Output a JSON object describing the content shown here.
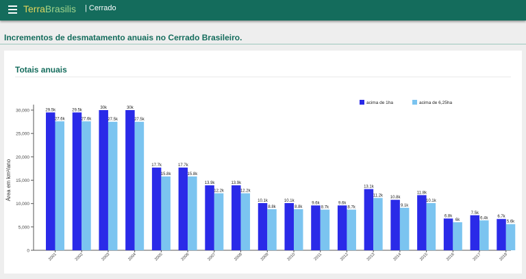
{
  "app": {
    "brand_part1": "Terra",
    "brand_part2": "Brasilis",
    "section": "| Cerrado",
    "menu_icon": "hamburger-menu-icon",
    "header_color": "#146c5c"
  },
  "page": {
    "title": "Incrementos de desmatamento anuais no Cerrado Brasileiro."
  },
  "card": {
    "title": "Totais anuais"
  },
  "chart_data": {
    "type": "bar",
    "ylabel": "Área em km²/ano",
    "xlabel": "",
    "ylim": [
      0,
      30000
    ],
    "yticks": [
      0,
      5000,
      10000,
      15000,
      20000,
      25000,
      30000
    ],
    "ytick_labels": [
      "0",
      "5,000",
      "10,000",
      "15,000",
      "20,000",
      "25,000",
      "30,000"
    ],
    "grid": false,
    "legend_position": "top-right",
    "categories": [
      "2001",
      "2002",
      "2003",
      "2004",
      "2005",
      "2006",
      "2007",
      "2008",
      "2009",
      "2010",
      "2011",
      "2012",
      "2013",
      "2014",
      "2015",
      "2016",
      "2017",
      "2018"
    ],
    "series": [
      {
        "name": "acima de 1ha",
        "color": "#2a2ae8",
        "values": [
          29500,
          29500,
          30000,
          30000,
          17700,
          17700,
          13900,
          13900,
          10100,
          10100,
          9600,
          9600,
          13100,
          10800,
          11800,
          6800,
          7500,
          6700
        ],
        "labels": [
          "29.5k",
          "29.5k",
          "30k",
          "30k",
          "17.7k",
          "17.7k",
          "13.9k",
          "13.9k",
          "10.1k",
          "10.1k",
          "9.6k",
          "9.6k",
          "13.1k",
          "10.8k",
          "11.8k",
          "6.8k",
          "7.5k",
          "6.7k"
        ]
      },
      {
        "name": "acima de 6,25ha",
        "color": "#7bc4f0",
        "values": [
          27600,
          27600,
          27500,
          27500,
          15800,
          15800,
          12200,
          12200,
          8800,
          8800,
          8700,
          8700,
          11200,
          9100,
          10100,
          6000,
          6400,
          5600
        ],
        "labels": [
          "27.6k",
          "27.6k",
          "27.5k",
          "27.5k",
          "15.8k",
          "15.8k",
          "12.2k",
          "12.2k",
          "8.8k",
          "8.8k",
          "8.7k",
          "8.7k",
          "11.2k",
          "9.1k",
          "10.1k",
          "6k",
          "6.4k",
          "5.6k"
        ]
      }
    ]
  }
}
